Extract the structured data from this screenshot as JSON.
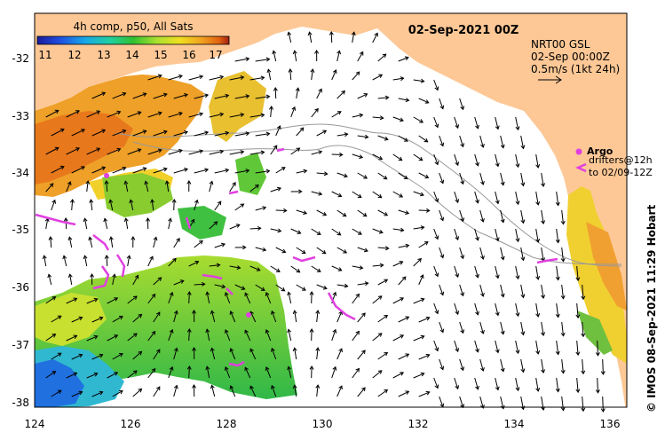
{
  "map": {
    "title": "02-Sep-2021 00Z",
    "sst_title": "4h comp, p50, All Sats",
    "colorbar_ticks": [
      "11",
      "12",
      "13",
      "14",
      "15",
      "16",
      "17"
    ],
    "product": "NRT00 GSL",
    "time": "02-Sep 00:00Z",
    "scale": "0.5m/s (1kt 24h)",
    "argo_label": "Argo",
    "drifters_label": "drifters@12h",
    "drifters_to": "to 02/09-12Z",
    "credit": "© IMOS 08-Sep-2021 11:29 Hobart",
    "lat_labels": [
      "-32",
      "-33",
      "-34",
      "-35",
      "-36",
      "-37",
      "-38"
    ],
    "lon_labels": [
      "124",
      "126",
      "128",
      "130",
      "132",
      "134",
      "136"
    ],
    "colors": {
      "land": "#fdc896",
      "argo": "#e040e0",
      "arrow": "#000000"
    }
  }
}
